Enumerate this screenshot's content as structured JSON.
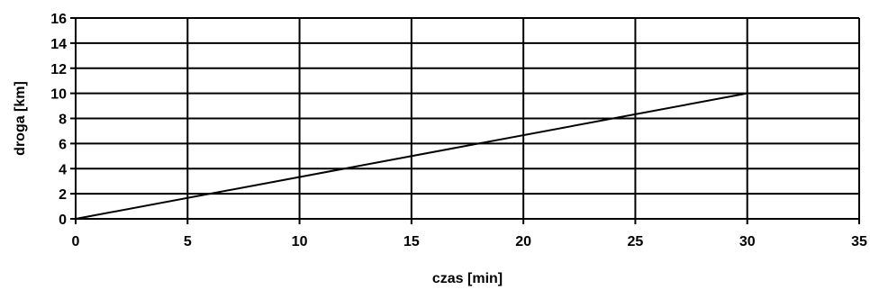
{
  "chart_data": {
    "type": "line",
    "xlabel": "czas [min]",
    "ylabel": "droga [km]",
    "xlim": [
      0,
      35
    ],
    "ylim": [
      0,
      16
    ],
    "x_ticks": [
      "0",
      "5",
      "10",
      "15",
      "20",
      "25",
      "30",
      "35"
    ],
    "y_ticks": [
      "0",
      "2",
      "4",
      "6",
      "8",
      "10",
      "12",
      "14",
      "16"
    ],
    "grid": true,
    "series": [
      {
        "x": [
          0,
          30
        ],
        "y": [
          0,
          10
        ],
        "color": "#000000"
      }
    ]
  }
}
